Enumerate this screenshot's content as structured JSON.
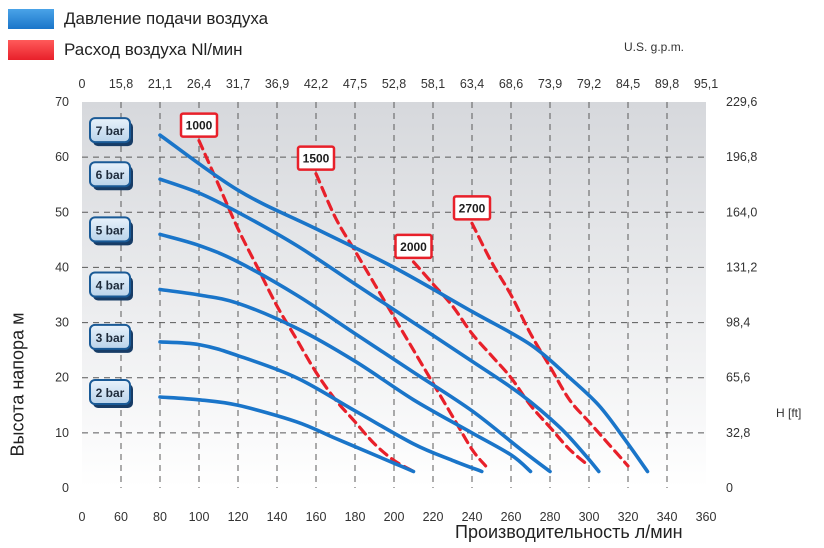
{
  "legend": {
    "pressure_label": "Давление подачи воздуха",
    "pressure_color": "#1a75c9",
    "airflow_label": "Расход воздуха Nl/мин",
    "airflow_color": "#e8202a"
  },
  "top_axis_unit": "U.S. g.p.m.",
  "right_axis_unit": "H [ft]",
  "chart_data": {
    "type": "line",
    "title": "",
    "xlabel": "Производительность л/мин",
    "ylabel": "Высота напора  м",
    "xlim": [
      0,
      360
    ],
    "ylim": [
      0,
      70
    ],
    "x_ticks": [
      "0",
      "60",
      "80",
      "100",
      "120",
      "140",
      "160",
      "180",
      "200",
      "220",
      "240",
      "260",
      "280",
      "300",
      "320",
      "340",
      "360"
    ],
    "y_ticks": [
      "0",
      "10",
      "20",
      "30",
      "40",
      "50",
      "60",
      "70"
    ],
    "top_ticks": [
      "0",
      "15,8",
      "21,1",
      "26,4",
      "31,7",
      "36,9",
      "42,2",
      "47,5",
      "52,8",
      "58,1",
      "63,4",
      "68,6",
      "73,9",
      "79,2",
      "84,5",
      "89,8",
      "95,1"
    ],
    "right_ticks": [
      "0",
      "32,8",
      "65,6",
      "98,4",
      "131,2",
      "164,0",
      "196,8",
      "229,6"
    ],
    "grid": true,
    "series": [
      {
        "name": "7 bar",
        "kind": "pressure",
        "points": [
          [
            80,
            64
          ],
          [
            120,
            54
          ],
          [
            160,
            47
          ],
          [
            200,
            40
          ],
          [
            240,
            32
          ],
          [
            270,
            26
          ],
          [
            290,
            20
          ],
          [
            305,
            15
          ],
          [
            318,
            9
          ],
          [
            330,
            3
          ]
        ]
      },
      {
        "name": "6 bar",
        "kind": "pressure",
        "points": [
          [
            80,
            56
          ],
          [
            100,
            53.5
          ],
          [
            120,
            50
          ],
          [
            150,
            44
          ],
          [
            180,
            37
          ],
          [
            210,
            30
          ],
          [
            240,
            23
          ],
          [
            265,
            17
          ],
          [
            285,
            11
          ],
          [
            298,
            6
          ],
          [
            305,
            3
          ]
        ]
      },
      {
        "name": "5 bar",
        "kind": "pressure",
        "points": [
          [
            80,
            46
          ],
          [
            100,
            44
          ],
          [
            120,
            41
          ],
          [
            150,
            35
          ],
          [
            180,
            28
          ],
          [
            210,
            21
          ],
          [
            240,
            14
          ],
          [
            265,
            7
          ],
          [
            280,
            3
          ]
        ]
      },
      {
        "name": "4 bar",
        "kind": "pressure",
        "points": [
          [
            80,
            36
          ],
          [
            100,
            35
          ],
          [
            120,
            33.5
          ],
          [
            150,
            29
          ],
          [
            180,
            23
          ],
          [
            210,
            16
          ],
          [
            240,
            10
          ],
          [
            260,
            6
          ],
          [
            270,
            3
          ]
        ]
      },
      {
        "name": "3 bar",
        "kind": "pressure",
        "points": [
          [
            80,
            26.5
          ],
          [
            100,
            26
          ],
          [
            120,
            24
          ],
          [
            150,
            20
          ],
          [
            180,
            14
          ],
          [
            210,
            8
          ],
          [
            230,
            5
          ],
          [
            245,
            3
          ]
        ]
      },
      {
        "name": "2 bar",
        "kind": "pressure",
        "points": [
          [
            80,
            16.5
          ],
          [
            100,
            16
          ],
          [
            120,
            15
          ],
          [
            150,
            12
          ],
          [
            170,
            9
          ],
          [
            190,
            6
          ],
          [
            200,
            4.5
          ],
          [
            210,
            3
          ]
        ]
      },
      {
        "name": "1000",
        "kind": "airflow",
        "points": [
          [
            100,
            63
          ],
          [
            110,
            55
          ],
          [
            120,
            47
          ],
          [
            130,
            40
          ],
          [
            140,
            33
          ],
          [
            150,
            27
          ],
          [
            160,
            21
          ],
          [
            170,
            16
          ],
          [
            180,
            12
          ],
          [
            190,
            8
          ],
          [
            200,
            5
          ],
          [
            210,
            3
          ]
        ]
      },
      {
        "name": "1500",
        "kind": "airflow",
        "points": [
          [
            160,
            57
          ],
          [
            170,
            49
          ],
          [
            180,
            43
          ],
          [
            190,
            37
          ],
          [
            200,
            31
          ],
          [
            210,
            25
          ],
          [
            220,
            19
          ],
          [
            230,
            13
          ],
          [
            240,
            7
          ],
          [
            247,
            4
          ]
        ]
      },
      {
        "name": "2000",
        "kind": "airflow",
        "points": [
          [
            210,
            41
          ],
          [
            220,
            37
          ],
          [
            230,
            33
          ],
          [
            240,
            28
          ],
          [
            250,
            24
          ],
          [
            260,
            20
          ],
          [
            270,
            15
          ],
          [
            280,
            11
          ],
          [
            290,
            7
          ],
          [
            300,
            4
          ]
        ]
      },
      {
        "name": "2700",
        "kind": "airflow",
        "points": [
          [
            240,
            48
          ],
          [
            250,
            41
          ],
          [
            260,
            35
          ],
          [
            270,
            28
          ],
          [
            280,
            22
          ],
          [
            290,
            16
          ],
          [
            300,
            12
          ],
          [
            310,
            8
          ],
          [
            320,
            4
          ]
        ]
      }
    ]
  }
}
